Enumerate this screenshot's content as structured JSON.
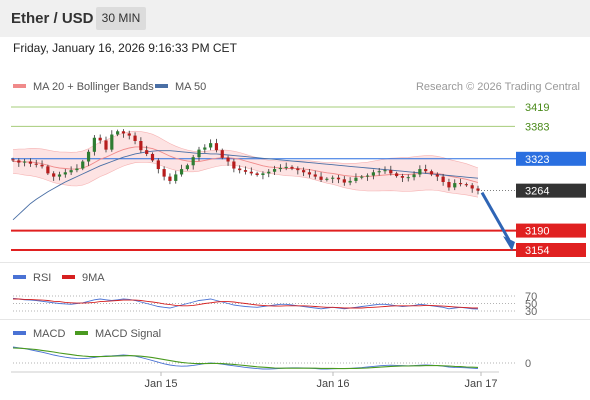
{
  "header": {
    "title": "Ether / USD",
    "timeframe": "30 MIN"
  },
  "subtitle": "Friday, January 16, 2026 9:16:33 PM CET",
  "legend": {
    "bb_label": "MA 20 + Bollinger Bands",
    "ma50_label": "MA 50",
    "credit": "Research © 2026 Trading Central"
  },
  "colors": {
    "bb": "#f08a8a",
    "bb_fill": "#fde3e3",
    "ma50": "#4a6fa5",
    "candle_up": "#2e7d32",
    "candle_down": "#b71c1c",
    "resistance": "#a6cc7a",
    "pivot": "#2a6fe0",
    "support": "#e02020",
    "current": "#333333",
    "arrow": "#2f65b5",
    "rsi": "#4a72d4",
    "rsi_ma": "#d62020",
    "macd": "#4a72d4",
    "macd_signal": "#4a9a20"
  },
  "chart_data": [
    {
      "type": "candlestick",
      "title": "Ether / USD",
      "ylim": [
        3130,
        3445
      ],
      "x_ticks": [
        "Jan 15",
        "Jan 16",
        "Jan 17"
      ],
      "levels": [
        {
          "label": "3419",
          "value": 3419,
          "kind": "resistance"
        },
        {
          "label": "3383",
          "value": 3383,
          "kind": "resistance"
        },
        {
          "label": "3323",
          "value": 3323,
          "kind": "pivot"
        },
        {
          "label": "3264",
          "value": 3264,
          "kind": "current"
        },
        {
          "label": "3190",
          "value": 3190,
          "kind": "support"
        },
        {
          "label": "3154",
          "value": 3154,
          "kind": "support"
        }
      ],
      "target": {
        "from": 3264,
        "to": 3154
      },
      "closes": [
        3320,
        3316,
        3318,
        3314,
        3312,
        3309,
        3296,
        3290,
        3294,
        3298,
        3302,
        3305,
        3318,
        3336,
        3362,
        3357,
        3340,
        3368,
        3374,
        3370,
        3366,
        3356,
        3339,
        3332,
        3320,
        3304,
        3290,
        3282,
        3294,
        3304,
        3311,
        3326,
        3340,
        3344,
        3352,
        3339,
        3325,
        3318,
        3305,
        3302,
        3299,
        3296,
        3293,
        3296,
        3299,
        3304,
        3306,
        3308,
        3305,
        3302,
        3298,
        3294,
        3290,
        3284,
        3286,
        3288,
        3285,
        3279,
        3282,
        3288,
        3290,
        3292,
        3298,
        3300,
        3302,
        3296,
        3291,
        3288,
        3289,
        3294,
        3304,
        3300,
        3294,
        3290,
        3280,
        3270,
        3278,
        3276,
        3274,
        3268,
        3264
      ],
      "ma20": [
        3318,
        3318,
        3317,
        3317,
        3316,
        3314,
        3311,
        3308,
        3306,
        3305,
        3304,
        3304,
        3306,
        3310,
        3316,
        3322,
        3326,
        3331,
        3336,
        3340,
        3343,
        3345,
        3345,
        3344,
        3342,
        3338,
        3333,
        3328,
        3324,
        3321,
        3319,
        3318,
        3318,
        3320,
        3322,
        3324,
        3325,
        3325,
        3324,
        3322,
        3319,
        3316,
        3313,
        3310,
        3308,
        3307,
        3306,
        3305,
        3305,
        3305,
        3304,
        3303,
        3301,
        3299,
        3297,
        3296,
        3294,
        3292,
        3291,
        3290,
        3290,
        3290,
        3291,
        3292,
        3293,
        3294,
        3294,
        3294,
        3294,
        3295,
        3296,
        3297,
        3297,
        3296,
        3294,
        3291,
        3289,
        3287,
        3285,
        3282,
        3279
      ],
      "ma50": [
        3210,
        3220,
        3230,
        3240,
        3248,
        3255,
        3262,
        3268,
        3274,
        3280,
        3285,
        3290,
        3295,
        3300,
        3305,
        3310,
        3314,
        3318,
        3322,
        3326,
        3329,
        3332,
        3334,
        3336,
        3337,
        3338,
        3338,
        3338,
        3337,
        3336,
        3335,
        3334,
        3333,
        3333,
        3332,
        3332,
        3331,
        3330,
        3329,
        3328,
        3327,
        3326,
        3325,
        3324,
        3323,
        3322,
        3321,
        3320,
        3319,
        3318,
        3317,
        3316,
        3315,
        3314,
        3313,
        3312,
        3311,
        3310,
        3309,
        3308,
        3307,
        3306,
        3305,
        3304,
        3303,
        3302,
        3301,
        3300,
        3299,
        3298,
        3297,
        3296,
        3295,
        3294,
        3293,
        3292,
        3291,
        3290,
        3289,
        3288,
        3287
      ]
    },
    {
      "type": "line",
      "name": "RSI",
      "ylim": [
        25,
        75
      ],
      "levels": [
        {
          "label": "70",
          "value": 70
        },
        {
          "label": "50",
          "value": 50
        },
        {
          "label": "30",
          "value": 30
        }
      ],
      "series": [
        {
          "name": "RSI",
          "values": [
            64,
            62,
            60,
            59,
            58,
            56,
            54,
            52,
            50,
            49,
            48,
            50,
            52,
            56,
            60,
            62,
            60,
            58,
            60,
            62,
            61,
            58,
            54,
            50,
            46,
            42,
            40,
            38,
            42,
            46,
            50,
            54,
            58,
            60,
            62,
            58,
            54,
            50,
            46,
            44,
            42,
            41,
            40,
            42,
            44,
            46,
            48,
            48,
            46,
            44,
            42,
            40,
            38,
            36,
            38,
            40,
            38,
            36,
            38,
            40,
            42,
            44,
            46,
            48,
            48,
            46,
            44,
            42,
            43,
            45,
            48,
            46,
            44,
            42,
            40,
            36,
            38,
            40,
            38,
            36,
            35
          ]
        },
        {
          "name": "9MA",
          "values": [
            62,
            62,
            61,
            61,
            60,
            59,
            58,
            56,
            55,
            53,
            52,
            51,
            51,
            52,
            53,
            55,
            56,
            57,
            58,
            59,
            59,
            59,
            58,
            56,
            54,
            52,
            49,
            47,
            45,
            44,
            44,
            45,
            47,
            50,
            52,
            54,
            55,
            55,
            54,
            52,
            50,
            48,
            46,
            45,
            44,
            43,
            43,
            44,
            44,
            44,
            44,
            43,
            42,
            41,
            40,
            40,
            39,
            38,
            38,
            38,
            38,
            39,
            40,
            41,
            42,
            43,
            44,
            44,
            44,
            44,
            44,
            45,
            45,
            44,
            43,
            42,
            41,
            40,
            39,
            38,
            38
          ]
        }
      ]
    },
    {
      "type": "line",
      "name": "MACD",
      "ylim": [
        -12,
        10
      ],
      "levels": [
        {
          "label": "0",
          "value": 0
        }
      ],
      "series": [
        {
          "name": "MACD",
          "values": [
            8,
            7.6,
            7.2,
            6.6,
            6,
            5.4,
            4.7,
            4,
            3.4,
            2.9,
            2.5,
            2.3,
            2.2,
            2.4,
            2.8,
            3.2,
            3.5,
            3.6,
            3.8,
            4,
            3.8,
            3.4,
            2.8,
            2,
            1.2,
            0.4,
            -0.4,
            -1,
            -1.4,
            -1.6,
            -1.5,
            -1.2,
            -0.8,
            -0.3,
            0,
            -0.2,
            -0.6,
            -1,
            -1.4,
            -1.8,
            -2.2,
            -2.5,
            -2.8,
            -3,
            -3,
            -2.9,
            -2.7,
            -2.5,
            -2.4,
            -2.4,
            -2.5,
            -2.6,
            -2.8,
            -3,
            -3,
            -2.9,
            -2.8,
            -2.8,
            -2.7,
            -2.5,
            -2.3,
            -2,
            -1.7,
            -1.4,
            -1.2,
            -1.1,
            -1.2,
            -1.3,
            -1.4,
            -1.3,
            -1.1,
            -1,
            -1.1,
            -1.3,
            -1.6,
            -2,
            -2.2,
            -2.3,
            -2.4,
            -2.6,
            -2.8
          ]
        },
        {
          "name": "MACD Signal",
          "values": [
            7.5,
            7.4,
            7.2,
            7,
            6.7,
            6.3,
            5.9,
            5.5,
            5,
            4.6,
            4.2,
            3.8,
            3.5,
            3.3,
            3.2,
            3.2,
            3.3,
            3.4,
            3.5,
            3.6,
            3.7,
            3.6,
            3.4,
            3.1,
            2.7,
            2.2,
            1.7,
            1.2,
            0.7,
            0.3,
            0,
            -0.2,
            -0.3,
            -0.3,
            -0.2,
            -0.2,
            -0.3,
            -0.5,
            -0.7,
            -1,
            -1.3,
            -1.6,
            -1.9,
            -2.1,
            -2.3,
            -2.5,
            -2.6,
            -2.6,
            -2.6,
            -2.6,
            -2.6,
            -2.6,
            -2.6,
            -2.7,
            -2.7,
            -2.7,
            -2.8,
            -2.8,
            -2.7,
            -2.7,
            -2.6,
            -2.5,
            -2.3,
            -2.1,
            -1.9,
            -1.7,
            -1.6,
            -1.5,
            -1.5,
            -1.4,
            -1.4,
            -1.3,
            -1.3,
            -1.3,
            -1.4,
            -1.5,
            -1.7,
            -1.8,
            -2,
            -2.1,
            -2.2
          ]
        }
      ]
    }
  ]
}
